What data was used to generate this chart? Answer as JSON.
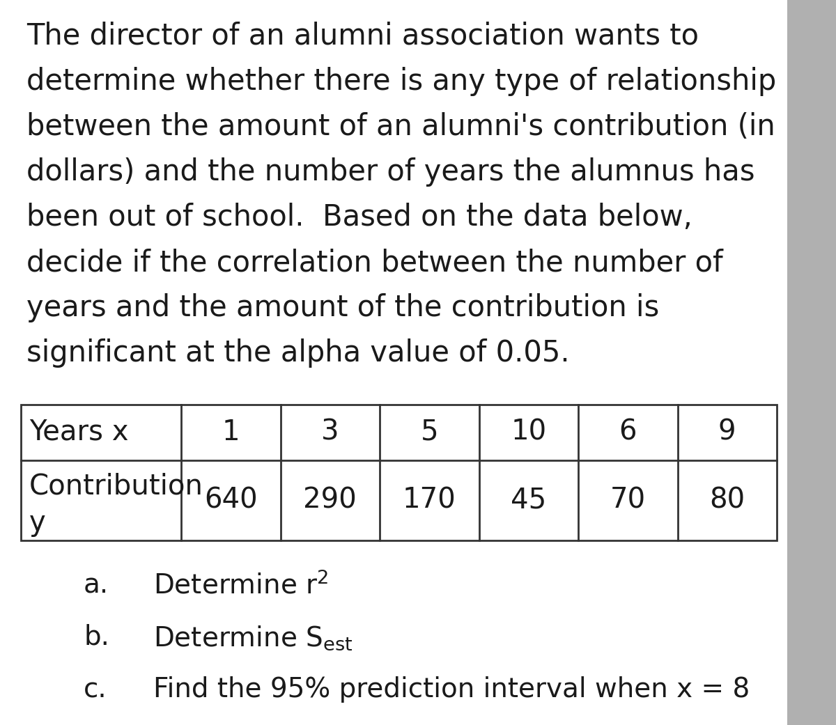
{
  "background_color": "#ffffff",
  "paragraph_lines": [
    "The director of an alumni association wants to",
    "determine whether there is any type of relationship",
    "between the amount of an alumni's contribution (in",
    "dollars) and the number of years the alumnus has",
    "been out of school.  Based on the data below,",
    "decide if the correlation between the number of",
    "years and the amount of the contribution is",
    "significant at the alpha value of 0.05."
  ],
  "table": {
    "row1_label": "Years x",
    "col_values_x": [
      "1",
      "3",
      "5",
      "10",
      "6",
      "9"
    ],
    "col_values_y": [
      "640",
      "290",
      "170",
      "45",
      "70",
      "80"
    ]
  },
  "font_size_paragraph": 30,
  "font_size_table": 29,
  "font_size_questions": 28,
  "text_color": "#1a1a1a",
  "table_border_color": "#333333",
  "right_bar_color": "#b0b0b0",
  "fig_width": 12.0,
  "fig_height": 10.41
}
